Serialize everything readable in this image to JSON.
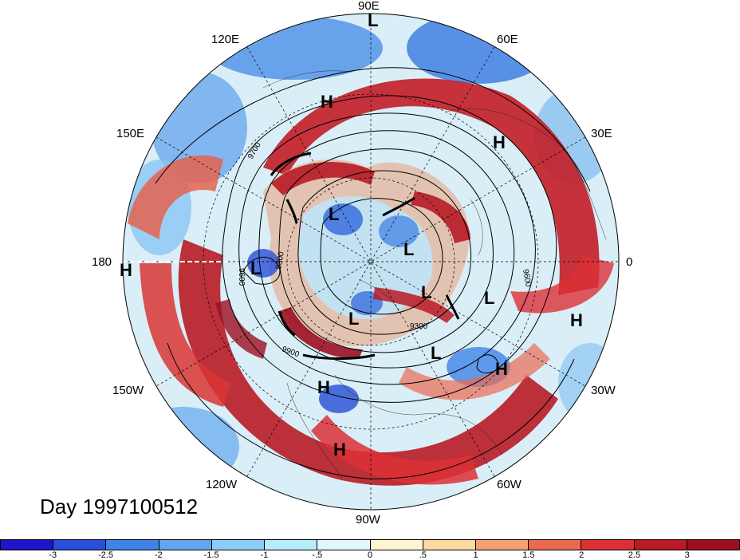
{
  "title": "Day 1997100512",
  "longitude_labels": [
    "90E",
    "60E",
    "30E",
    "0",
    "30W",
    "60W",
    "90W",
    "120W",
    "150W",
    "180",
    "150E",
    "120E"
  ],
  "contour_labels": [
    "9700",
    "9600",
    "9300",
    "9300",
    "9600",
    "9900"
  ],
  "pressure_centers": [
    "L",
    "L",
    "L",
    "L",
    "L",
    "L",
    "L",
    "L",
    "H",
    "H",
    "H",
    "H",
    "H",
    "H",
    "H",
    "H"
  ],
  "colorbar": {
    "ticks": [
      "-3",
      "-2.5",
      "-2",
      "-1.5",
      "-1",
      "-.5",
      "0",
      ".5",
      "1",
      "1.5",
      "2",
      "2.5",
      "3"
    ],
    "colors": [
      "#1f14c8",
      "#2a4fd9",
      "#3f83e6",
      "#62a6ef",
      "#8ccdf7",
      "#b7ecfb",
      "#e1f7fb",
      "#fdf4d2",
      "#fbd9a1",
      "#f4a074",
      "#ea6a51",
      "#dc3036",
      "#b81b25",
      "#9c0f20"
    ],
    "range": [
      -3,
      3
    ]
  },
  "projection": "north-polar-stereographic"
}
